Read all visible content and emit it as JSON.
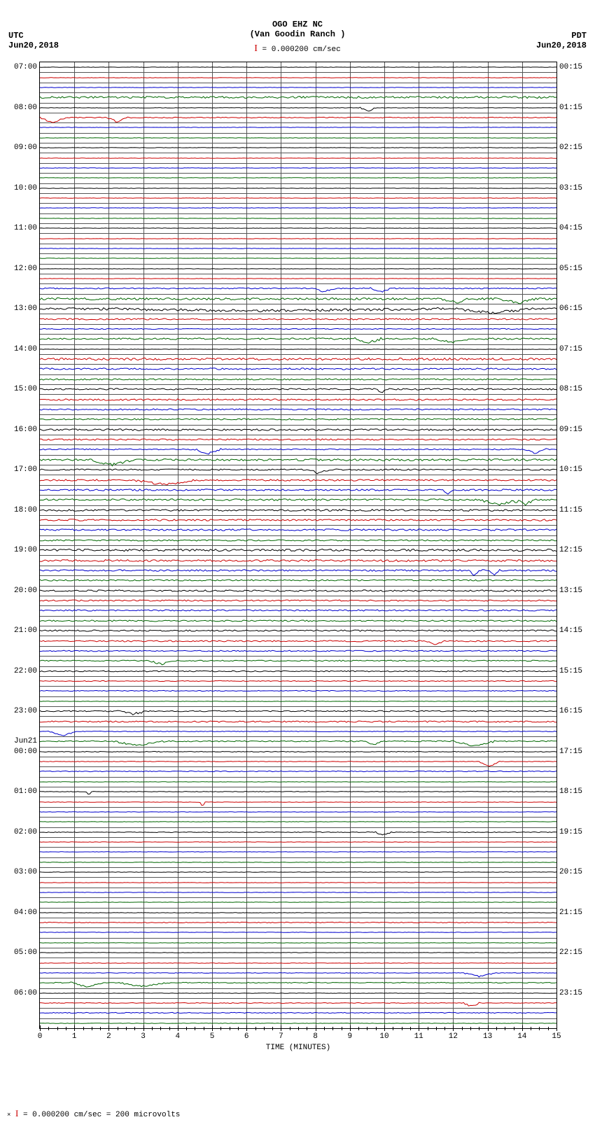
{
  "header": {
    "station": "OGO EHZ NC",
    "location": "(Van Goodin Ranch )",
    "scale_text": "= 0.000200 cm/sec"
  },
  "axes": {
    "left_tz": "UTC",
    "left_date": "Jun20,2018",
    "right_tz": "PDT",
    "right_date": "Jun20,2018",
    "x_title": "TIME (MINUTES)",
    "x_min": 0,
    "x_max": 15,
    "x_major_step": 1,
    "x_minor_per_major": 4,
    "grid_color": "#555555",
    "background": "#ffffff"
  },
  "footer": {
    "text": "= 0.000200 cm/sec =    200 microvolts"
  },
  "trace_colors": [
    "#000000",
    "#cc0000",
    "#0000cc",
    "#006600"
  ],
  "plot": {
    "rows": 96,
    "labels_left": [
      {
        "row": 0,
        "text": "07:00"
      },
      {
        "row": 4,
        "text": "08:00"
      },
      {
        "row": 8,
        "text": "09:00"
      },
      {
        "row": 12,
        "text": "10:00"
      },
      {
        "row": 16,
        "text": "11:00"
      },
      {
        "row": 20,
        "text": "12:00"
      },
      {
        "row": 24,
        "text": "13:00"
      },
      {
        "row": 28,
        "text": "14:00"
      },
      {
        "row": 32,
        "text": "15:00"
      },
      {
        "row": 36,
        "text": "16:00"
      },
      {
        "row": 40,
        "text": "17:00"
      },
      {
        "row": 44,
        "text": "18:00"
      },
      {
        "row": 48,
        "text": "19:00"
      },
      {
        "row": 52,
        "text": "20:00"
      },
      {
        "row": 56,
        "text": "21:00"
      },
      {
        "row": 60,
        "text": "22:00"
      },
      {
        "row": 64,
        "text": "23:00"
      },
      {
        "row": 67,
        "text": "Jun21"
      },
      {
        "row": 68,
        "text": "00:00"
      },
      {
        "row": 72,
        "text": "01:00"
      },
      {
        "row": 76,
        "text": "02:00"
      },
      {
        "row": 80,
        "text": "03:00"
      },
      {
        "row": 84,
        "text": "04:00"
      },
      {
        "row": 88,
        "text": "05:00"
      },
      {
        "row": 92,
        "text": "06:00"
      }
    ],
    "labels_right": [
      {
        "row": 0,
        "text": "00:15"
      },
      {
        "row": 4,
        "text": "01:15"
      },
      {
        "row": 8,
        "text": "02:15"
      },
      {
        "row": 12,
        "text": "03:15"
      },
      {
        "row": 16,
        "text": "04:15"
      },
      {
        "row": 20,
        "text": "05:15"
      },
      {
        "row": 24,
        "text": "06:15"
      },
      {
        "row": 28,
        "text": "07:15"
      },
      {
        "row": 32,
        "text": "08:15"
      },
      {
        "row": 36,
        "text": "09:15"
      },
      {
        "row": 40,
        "text": "10:15"
      },
      {
        "row": 44,
        "text": "11:15"
      },
      {
        "row": 48,
        "text": "12:15"
      },
      {
        "row": 52,
        "text": "13:15"
      },
      {
        "row": 56,
        "text": "14:15"
      },
      {
        "row": 60,
        "text": "15:15"
      },
      {
        "row": 64,
        "text": "16:15"
      },
      {
        "row": 68,
        "text": "17:15"
      },
      {
        "row": 72,
        "text": "18:15"
      },
      {
        "row": 76,
        "text": "19:15"
      },
      {
        "row": 80,
        "text": "20:15"
      },
      {
        "row": 84,
        "text": "21:15"
      },
      {
        "row": 88,
        "text": "22:15"
      },
      {
        "row": 92,
        "text": "23:15"
      }
    ]
  },
  "activity": {
    "5": {
      "amp": 0.6,
      "events": [
        {
          "x": 0.0,
          "w": 0.05,
          "d": 7
        },
        {
          "x": 0.13,
          "w": 0.04,
          "d": 6
        }
      ]
    },
    "4": {
      "amp": 0.3,
      "events": [
        {
          "x": 0.62,
          "w": 0.03,
          "d": 5
        }
      ]
    },
    "3": {
      "amp": 1.4
    },
    "22": {
      "amp": 0.8,
      "events": [
        {
          "x": 0.53,
          "w": 0.04,
          "d": 5
        },
        {
          "x": 0.64,
          "w": 0.04,
          "d": 5
        }
      ]
    },
    "23": {
      "amp": 1.5,
      "events": [
        {
          "x": 0.89,
          "w": 0.07,
          "d": 6
        },
        {
          "x": 0.78,
          "w": 0.05,
          "d": 5
        }
      ]
    },
    "24": {
      "amp": 1.2,
      "events": [
        {
          "x": 0.08,
          "w": 0.7,
          "d": 3
        },
        {
          "x": 0.8,
          "w": 0.15,
          "d": 6
        }
      ]
    },
    "25": {
      "amp": 1.0
    },
    "26": {
      "amp": 0.6
    },
    "27": {
      "amp": 1.2,
      "events": [
        {
          "x": 0.61,
          "w": 0.05,
          "d": 6
        },
        {
          "x": 0.76,
          "w": 0.08,
          "d": 5
        }
      ]
    },
    "29": {
      "amp": 1.6
    },
    "30": {
      "amp": 1.2
    },
    "31": {
      "amp": 1.0
    },
    "32": {
      "amp": 1.1,
      "events": [
        {
          "x": 0.65,
          "w": 0.02,
          "d": 6
        }
      ]
    },
    "33": {
      "amp": 1.2
    },
    "34": {
      "amp": 1.0
    },
    "35": {
      "amp": 1.0
    },
    "36": {
      "amp": 1.2
    },
    "37": {
      "amp": 1.0
    },
    "38": {
      "amp": 0.8,
      "events": [
        {
          "x": 0.3,
          "w": 0.05,
          "d": 6
        },
        {
          "x": 0.94,
          "w": 0.04,
          "d": 6
        }
      ]
    },
    "39": {
      "amp": 1.4,
      "events": [
        {
          "x": 0.1,
          "w": 0.08,
          "d": 7
        }
      ]
    },
    "40": {
      "amp": 1.0,
      "events": [
        {
          "x": 0.52,
          "w": 0.04,
          "d": 5
        }
      ]
    },
    "41": {
      "amp": 1.2,
      "events": [
        {
          "x": 0.18,
          "w": 0.12,
          "d": 6
        }
      ]
    },
    "42": {
      "amp": 1.2,
      "events": [
        {
          "x": 0.78,
          "w": 0.02,
          "d": 5
        }
      ]
    },
    "43": {
      "amp": 1.3,
      "events": [
        {
          "x": 0.85,
          "w": 0.08,
          "d": 7
        },
        {
          "x": 0.92,
          "w": 0.04,
          "d": 6
        }
      ]
    },
    "44": {
      "amp": 1.3
    },
    "45": {
      "amp": 1.2
    },
    "46": {
      "amp": 1.2
    },
    "47": {
      "amp": 1.0
    },
    "48": {
      "amp": 1.6
    },
    "49": {
      "amp": 1.4
    },
    "50": {
      "amp": 1.2,
      "events": [
        {
          "x": 0.83,
          "w": 0.02,
          "d": 8
        },
        {
          "x": 0.87,
          "w": 0.02,
          "d": 7
        }
      ]
    },
    "51": {
      "amp": 1.0
    },
    "52": {
      "amp": 1.2
    },
    "53": {
      "amp": 1.0
    },
    "54": {
      "amp": 1.0
    },
    "55": {
      "amp": 1.0
    },
    "56": {
      "amp": 1.0
    },
    "57": {
      "amp": 1.0,
      "events": [
        {
          "x": 0.75,
          "w": 0.03,
          "d": 5
        }
      ]
    },
    "58": {
      "amp": 0.8
    },
    "59": {
      "amp": 0.8,
      "events": [
        {
          "x": 0.21,
          "w": 0.05,
          "d": 5
        }
      ]
    },
    "60": {
      "amp": 0.8
    },
    "61": {
      "amp": 0.6
    },
    "62": {
      "amp": 0.6
    },
    "64": {
      "amp": 0.8,
      "events": [
        {
          "x": 0.15,
          "w": 0.06,
          "d": 4
        }
      ]
    },
    "65": {
      "amp": 1.0
    },
    "66": {
      "amp": 0.5,
      "events": [
        {
          "x": 0.02,
          "w": 0.05,
          "d": 6
        }
      ]
    },
    "67": {
      "amp": 0.8,
      "events": [
        {
          "x": 0.14,
          "w": 0.1,
          "d": 6
        },
        {
          "x": 0.63,
          "w": 0.03,
          "d": 5
        },
        {
          "x": 0.8,
          "w": 0.08,
          "d": 7
        }
      ]
    },
    "68": {
      "amp": 0.5
    },
    "69": {
      "amp": 0.4,
      "events": [
        {
          "x": 0.85,
          "w": 0.04,
          "d": 7
        }
      ]
    },
    "70": {
      "amp": 0.6
    },
    "72": {
      "amp": 0.4,
      "events": [
        {
          "x": 0.09,
          "w": 0.01,
          "d": 5
        }
      ]
    },
    "73": {
      "amp": 0.3,
      "events": [
        {
          "x": 0.31,
          "w": 0.01,
          "d": 6
        }
      ]
    },
    "76": {
      "amp": 0.5,
      "events": [
        {
          "x": 0.65,
          "w": 0.03,
          "d": 4
        }
      ]
    },
    "85": {
      "amp": 0.6
    },
    "90": {
      "amp": 0.4,
      "events": [
        {
          "x": 0.82,
          "w": 0.06,
          "d": 5
        }
      ]
    },
    "91": {
      "amp": 0.6,
      "events": [
        {
          "x": 0.06,
          "w": 0.06,
          "d": 6
        },
        {
          "x": 0.15,
          "w": 0.1,
          "d": 5
        }
      ]
    },
    "93": {
      "amp": 0.5,
      "events": [
        {
          "x": 0.82,
          "w": 0.03,
          "d": 5
        }
      ]
    },
    "94": {
      "amp": 0.6
    }
  }
}
